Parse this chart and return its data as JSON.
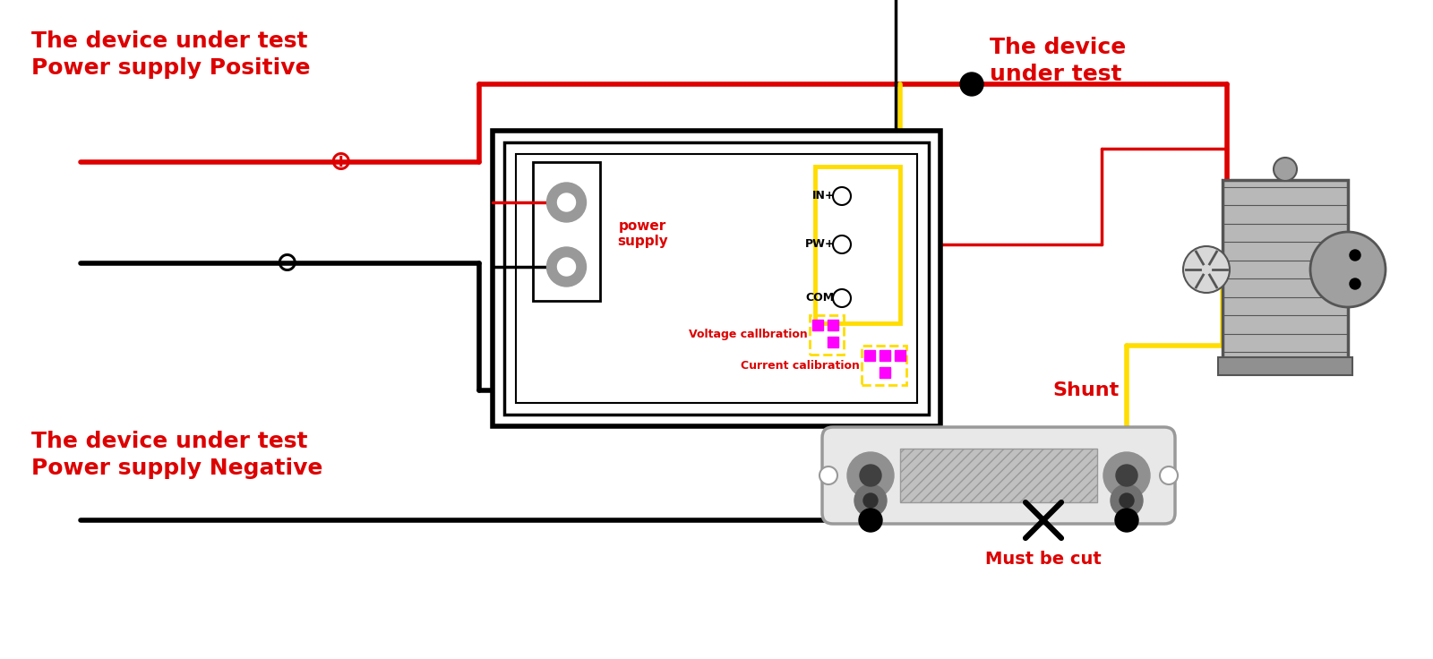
{
  "bg": "#ffffff",
  "red": "#dd0000",
  "blk": "#000000",
  "yel": "#ffdd00",
  "gray": "#999999",
  "ltgray": "#cccccc",
  "dgray": "#555555",
  "mag": "#ff00ff",
  "lw_main": 4.0,
  "lw_thin": 2.5,
  "text_pos": "The device under test\nPower supply Positive",
  "text_neg": "The device under test\nPower supply Negative",
  "text_device": "The device\nunder test",
  "text_shunt": "Shunt",
  "text_mustcut": "Must be cut",
  "text_ps": "power\nsupply",
  "text_vcal": "Voltage callbration",
  "text_ccal": "Current calibration",
  "text_in": "IN+",
  "text_pw": "PW+",
  "text_com": "COM"
}
